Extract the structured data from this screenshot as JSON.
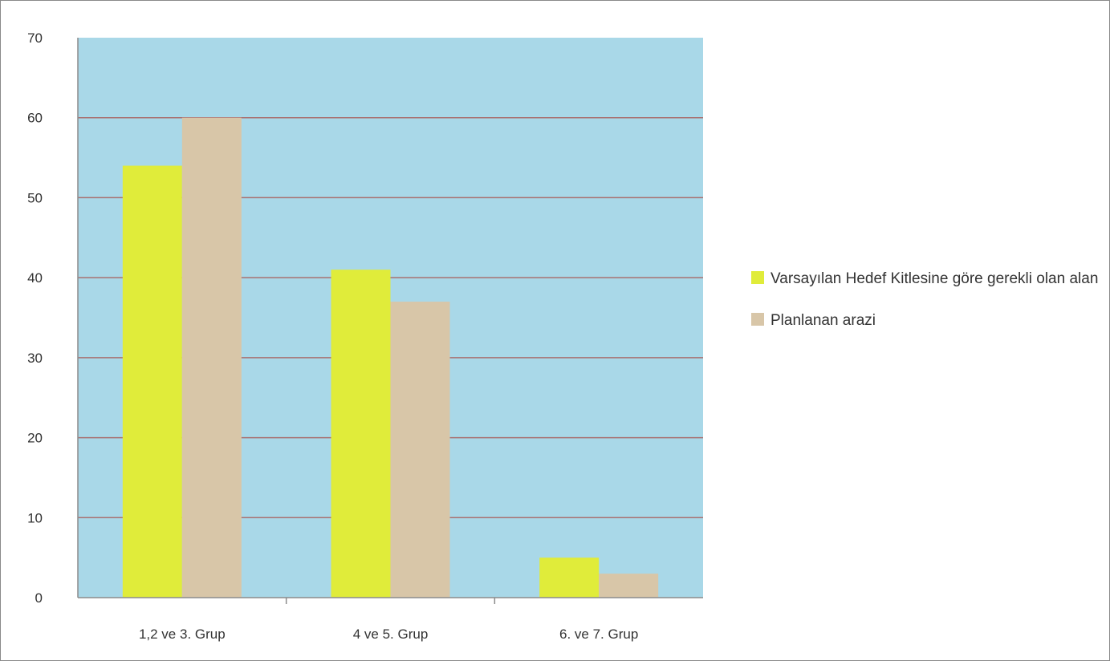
{
  "chart_data": {
    "type": "bar",
    "categories": [
      "1,2 ve 3. Grup",
      "4 ve 5. Grup",
      "6. ve 7. Grup"
    ],
    "series": [
      {
        "name": "Varsayılan Hedef Kitlesine göre gerekli olan alan",
        "values": [
          54,
          41,
          5
        ],
        "color": "#e0ec3a"
      },
      {
        "name": "Planlanan arazi",
        "values": [
          60,
          37,
          3
        ],
        "color": "#d8c6a8"
      }
    ],
    "title": "",
    "xlabel": "",
    "ylabel": "",
    "ylim": [
      0,
      70
    ],
    "yticks": [
      0,
      10,
      20,
      30,
      40,
      50,
      60,
      70
    ],
    "ytick_labels": [
      "0",
      "10",
      "20",
      "30",
      "40",
      "50",
      "60",
      "70"
    ],
    "grid": true,
    "legend_position": "right",
    "plot_background": "#a9d8e8",
    "gridline_color": "#a97070"
  }
}
